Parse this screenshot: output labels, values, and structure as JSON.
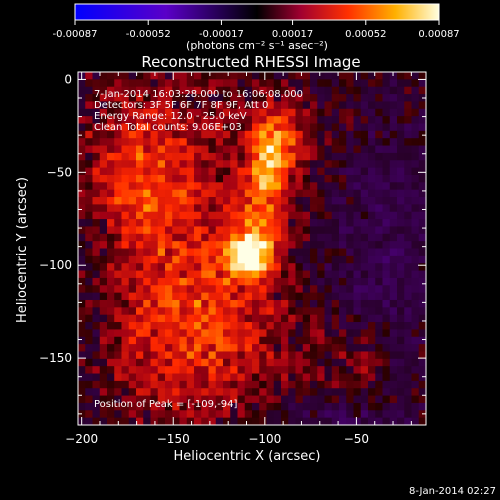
{
  "chart_data": {
    "type": "heatmap",
    "title": "Reconstructed RHESSI Image",
    "xlabel": "Heliocentric X (arcsec)",
    "ylabel": "Heliocentric Y (arcsec)",
    "xlim": [
      -202,
      -12
    ],
    "ylim": [
      -186,
      4
    ],
    "x_ticks": [
      -200,
      -150,
      -100,
      -50
    ],
    "y_ticks": [
      0,
      -50,
      -100,
      -150
    ],
    "colorbar": {
      "label": "(photons cm⁻² s⁻¹ asec⁻²)",
      "range": [
        -0.00087,
        0.00087
      ],
      "ticks": [
        "-0.00087",
        "-0.00052",
        "-0.00017",
        "0.00017",
        "0.00052",
        "0.00087"
      ]
    },
    "info": [
      "7-Jan-2014 16:03:28.000 to 16:06:08.000",
      "Detectors: 3F 5F 6F 7F 8F 9F, Att 0",
      "Energy Range: 12.0 - 25.0 keV",
      "Clean     Total counts: 9.06E+03"
    ],
    "peak_label": "Position of Peak = [-109,-94]",
    "peak": [
      -109,
      -94
    ],
    "colors": {
      "negative": "#1a10ff",
      "zero": "#000000",
      "positive_mid": "#ff5a00",
      "positive_max": "#ffffff"
    }
  },
  "footer": {
    "timestamp": "8-Jan-2014 02:27"
  }
}
